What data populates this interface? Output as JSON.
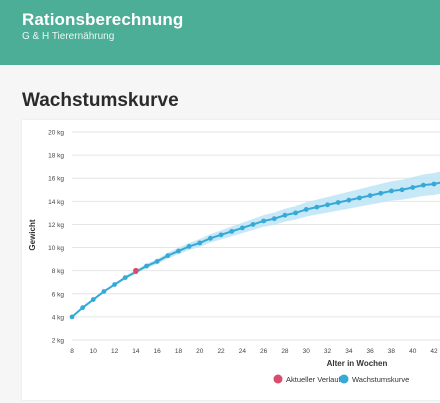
{
  "header": {
    "title": "Rationsberechnung",
    "subtitle": "G & H Tierernährung"
  },
  "section": {
    "title": "Wachstumskurve"
  },
  "colors": {
    "header_bg": "#4cae96",
    "growth_line": "#36a9d6",
    "growth_band": "#bde4f4",
    "current_point": "#d94c6e",
    "grid": "#e6e6e6"
  },
  "chart_data": {
    "type": "line",
    "xlabel": "Alter in Wochen",
    "ylabel": "Gewicht",
    "ylim": [
      2,
      20
    ],
    "y_ticks": [
      "2 kg",
      "4 kg",
      "6 kg",
      "8 kg",
      "10 kg",
      "12 kg",
      "14 kg",
      "16 kg",
      "18 kg",
      "20 kg"
    ],
    "x_ticks": [
      "8",
      "10",
      "12",
      "14",
      "16",
      "18",
      "20",
      "22",
      "24",
      "26",
      "28",
      "30",
      "32",
      "34",
      "36",
      "38",
      "40",
      "42"
    ],
    "grid": true,
    "legend_placement": "bottom-center",
    "series": [
      {
        "name": "Wachstumskurve",
        "x": [
          8,
          9,
          10,
          11,
          12,
          13,
          14,
          15,
          16,
          17,
          18,
          19,
          20,
          21,
          22,
          23,
          24,
          25,
          26,
          27,
          28,
          29,
          30,
          31,
          32,
          33,
          34,
          35,
          36,
          37,
          38,
          39,
          40,
          41,
          42,
          43
        ],
        "values": [
          4.0,
          4.8,
          5.5,
          6.2,
          6.8,
          7.4,
          7.9,
          8.4,
          8.8,
          9.3,
          9.7,
          10.1,
          10.4,
          10.8,
          11.1,
          11.4,
          11.7,
          12.0,
          12.3,
          12.5,
          12.8,
          13.0,
          13.3,
          13.5,
          13.7,
          13.9,
          14.1,
          14.3,
          14.5,
          14.7,
          14.9,
          15.0,
          15.2,
          15.4,
          15.5,
          15.7
        ]
      },
      {
        "name": "Aktueller Verlauf",
        "x": [
          14
        ],
        "values": [
          8.0
        ]
      }
    ]
  }
}
